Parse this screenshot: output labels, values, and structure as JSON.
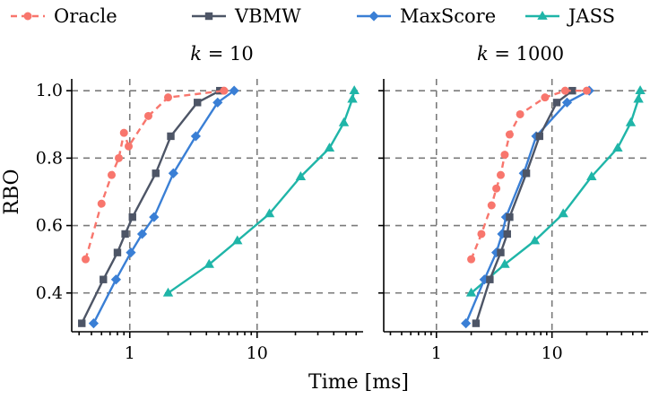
{
  "chart_data": {
    "type": "line",
    "ylabel": "RBO",
    "xlabel": "Time [ms]",
    "xscale": "log",
    "xlim": [
      0.35,
      68
    ],
    "ylim": [
      0.285,
      1.035
    ],
    "x_ticks": [
      1,
      10
    ],
    "x_tick_labels": [
      "1",
      "10"
    ],
    "y_ticks": [
      0.4,
      0.6,
      0.8,
      1.0
    ],
    "y_tick_labels": [
      "0.4",
      "0.6",
      "0.8",
      "1.0"
    ],
    "grid": true,
    "legend_position": "top",
    "series_styles": [
      {
        "name": "Oracle",
        "color": "#F8766D",
        "marker": "circle",
        "dash": true
      },
      {
        "name": "VBMW",
        "color": "#4D5566",
        "marker": "square",
        "dash": false
      },
      {
        "name": "MaxScore",
        "color": "#3A7FD5",
        "marker": "diamond",
        "dash": false
      },
      {
        "name": "JASS",
        "color": "#1FB5A8",
        "marker": "triangle",
        "dash": false
      }
    ],
    "panels": [
      {
        "title": "k = 10",
        "title_italic": "k",
        "title_rest": " = 10",
        "series": [
          {
            "name": "Oracle",
            "x": [
              0.45,
              0.6,
              0.72,
              0.82,
              0.9,
              0.98,
              1.4,
              2.0,
              5.5
            ],
            "y": [
              0.5,
              0.665,
              0.75,
              0.8,
              0.875,
              0.835,
              0.925,
              0.98,
              1.0
            ]
          },
          {
            "name": "VBMW",
            "x": [
              0.42,
              0.62,
              0.8,
              0.92,
              1.05,
              1.6,
              2.1,
              3.4,
              5.1
            ],
            "y": [
              0.31,
              0.44,
              0.52,
              0.575,
              0.625,
              0.755,
              0.865,
              0.965,
              1.0
            ]
          },
          {
            "name": "MaxScore",
            "x": [
              0.52,
              0.78,
              1.02,
              1.25,
              1.55,
              2.2,
              3.3,
              4.9,
              6.6
            ],
            "y": [
              0.31,
              0.44,
              0.52,
              0.575,
              0.625,
              0.755,
              0.865,
              0.965,
              1.0
            ]
          },
          {
            "name": "JASS",
            "x": [
              2.0,
              4.2,
              7.0,
              12.5,
              22.0,
              37.0,
              48.0,
              56.0,
              58.0
            ],
            "y": [
              0.4,
              0.485,
              0.555,
              0.635,
              0.745,
              0.83,
              0.905,
              0.975,
              1.0
            ]
          }
        ]
      },
      {
        "title": "k = 1000",
        "title_italic": "k",
        "title_rest": " = 1000",
        "series": [
          {
            "name": "Oracle",
            "x": [
              2.0,
              2.45,
              3.0,
              3.3,
              3.6,
              3.9,
              4.3,
              5.3,
              8.7,
              13.0,
              20.0
            ],
            "y": [
              0.5,
              0.575,
              0.66,
              0.71,
              0.75,
              0.81,
              0.87,
              0.93,
              0.98,
              1.0,
              1.0
            ]
          },
          {
            "name": "VBMW",
            "x": [
              2.2,
              2.9,
              3.6,
              4.1,
              4.3,
              6.0,
              7.8,
              11.0,
              15.0
            ],
            "y": [
              0.31,
              0.44,
              0.52,
              0.575,
              0.625,
              0.755,
              0.865,
              0.965,
              1.0
            ]
          },
          {
            "name": "MaxScore",
            "x": [
              1.8,
              2.6,
              3.3,
              3.7,
              4.0,
              5.7,
              7.3,
              13.5,
              21.0
            ],
            "y": [
              0.31,
              0.44,
              0.52,
              0.575,
              0.625,
              0.755,
              0.865,
              0.965,
              1.0
            ]
          },
          {
            "name": "JASS",
            "x": [
              2.0,
              3.9,
              7.1,
              12.5,
              22.0,
              37.0,
              48.0,
              56.0,
              58.0
            ],
            "y": [
              0.4,
              0.485,
              0.555,
              0.635,
              0.745,
              0.83,
              0.905,
              0.975,
              1.0
            ]
          }
        ]
      }
    ]
  }
}
